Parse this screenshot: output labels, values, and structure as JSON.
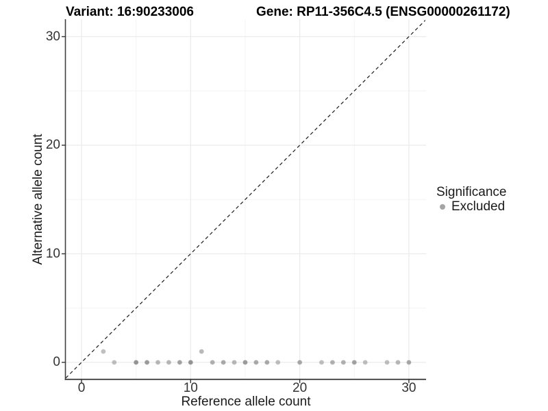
{
  "titles": {
    "variant": "Variant: 16:90233006",
    "gene": "Gene: RP11-356C4.5 (ENSG00000261172)"
  },
  "chart_data": {
    "type": "scatter",
    "xlabel": "Reference allele count",
    "ylabel": "Alternative allele count",
    "x_ticks": [
      0,
      10,
      20,
      30
    ],
    "y_ticks": [
      0,
      10,
      20,
      30
    ],
    "x_minor_ticks": [
      5,
      15,
      25
    ],
    "y_minor_ticks": [
      5,
      15,
      25
    ],
    "x_range": [
      0,
      30
    ],
    "y_range": [
      0,
      30
    ],
    "grid": "major and minor, light gray, white background",
    "identity_line": {
      "type": "dashed",
      "equation": "y = x",
      "color": "#1a1a1a"
    },
    "legend": {
      "position": "right",
      "title": "Significance",
      "entries": [
        {
          "label": "Excluded",
          "color": "#737373"
        }
      ]
    },
    "point_color": "#737373",
    "grid_major_color": "#ebebeb",
    "grid_minor_color": "#f3f3f3",
    "axis_line_color": "#404040",
    "series": [
      {
        "name": "Excluded",
        "points": [
          {
            "x": 2,
            "y": 1,
            "alpha": 0.45
          },
          {
            "x": 3,
            "y": 0,
            "alpha": 0.45
          },
          {
            "x": 5,
            "y": 0,
            "alpha": 0.75
          },
          {
            "x": 6,
            "y": 0,
            "alpha": 0.7
          },
          {
            "x": 7,
            "y": 0,
            "alpha": 0.5
          },
          {
            "x": 8,
            "y": 0,
            "alpha": 0.5
          },
          {
            "x": 9,
            "y": 0,
            "alpha": 0.65
          },
          {
            "x": 10,
            "y": 0,
            "alpha": 0.75
          },
          {
            "x": 11,
            "y": 1,
            "alpha": 0.5
          },
          {
            "x": 12,
            "y": 0,
            "alpha": 0.55
          },
          {
            "x": 13,
            "y": 0,
            "alpha": 0.6
          },
          {
            "x": 14,
            "y": 0,
            "alpha": 0.5
          },
          {
            "x": 15,
            "y": 0,
            "alpha": 0.7
          },
          {
            "x": 16,
            "y": 0,
            "alpha": 0.6
          },
          {
            "x": 17,
            "y": 0,
            "alpha": 0.6
          },
          {
            "x": 18,
            "y": 0,
            "alpha": 0.45
          },
          {
            "x": 20,
            "y": 0,
            "alpha": 0.6
          },
          {
            "x": 22,
            "y": 0,
            "alpha": 0.45
          },
          {
            "x": 23,
            "y": 0,
            "alpha": 0.55
          },
          {
            "x": 24,
            "y": 0,
            "alpha": 0.55
          },
          {
            "x": 25,
            "y": 0,
            "alpha": 0.65
          },
          {
            "x": 26,
            "y": 0,
            "alpha": 0.45
          },
          {
            "x": 28,
            "y": 0,
            "alpha": 0.45
          },
          {
            "x": 29,
            "y": 0,
            "alpha": 0.5
          },
          {
            "x": 30,
            "y": 0,
            "alpha": 0.6
          }
        ]
      }
    ]
  }
}
